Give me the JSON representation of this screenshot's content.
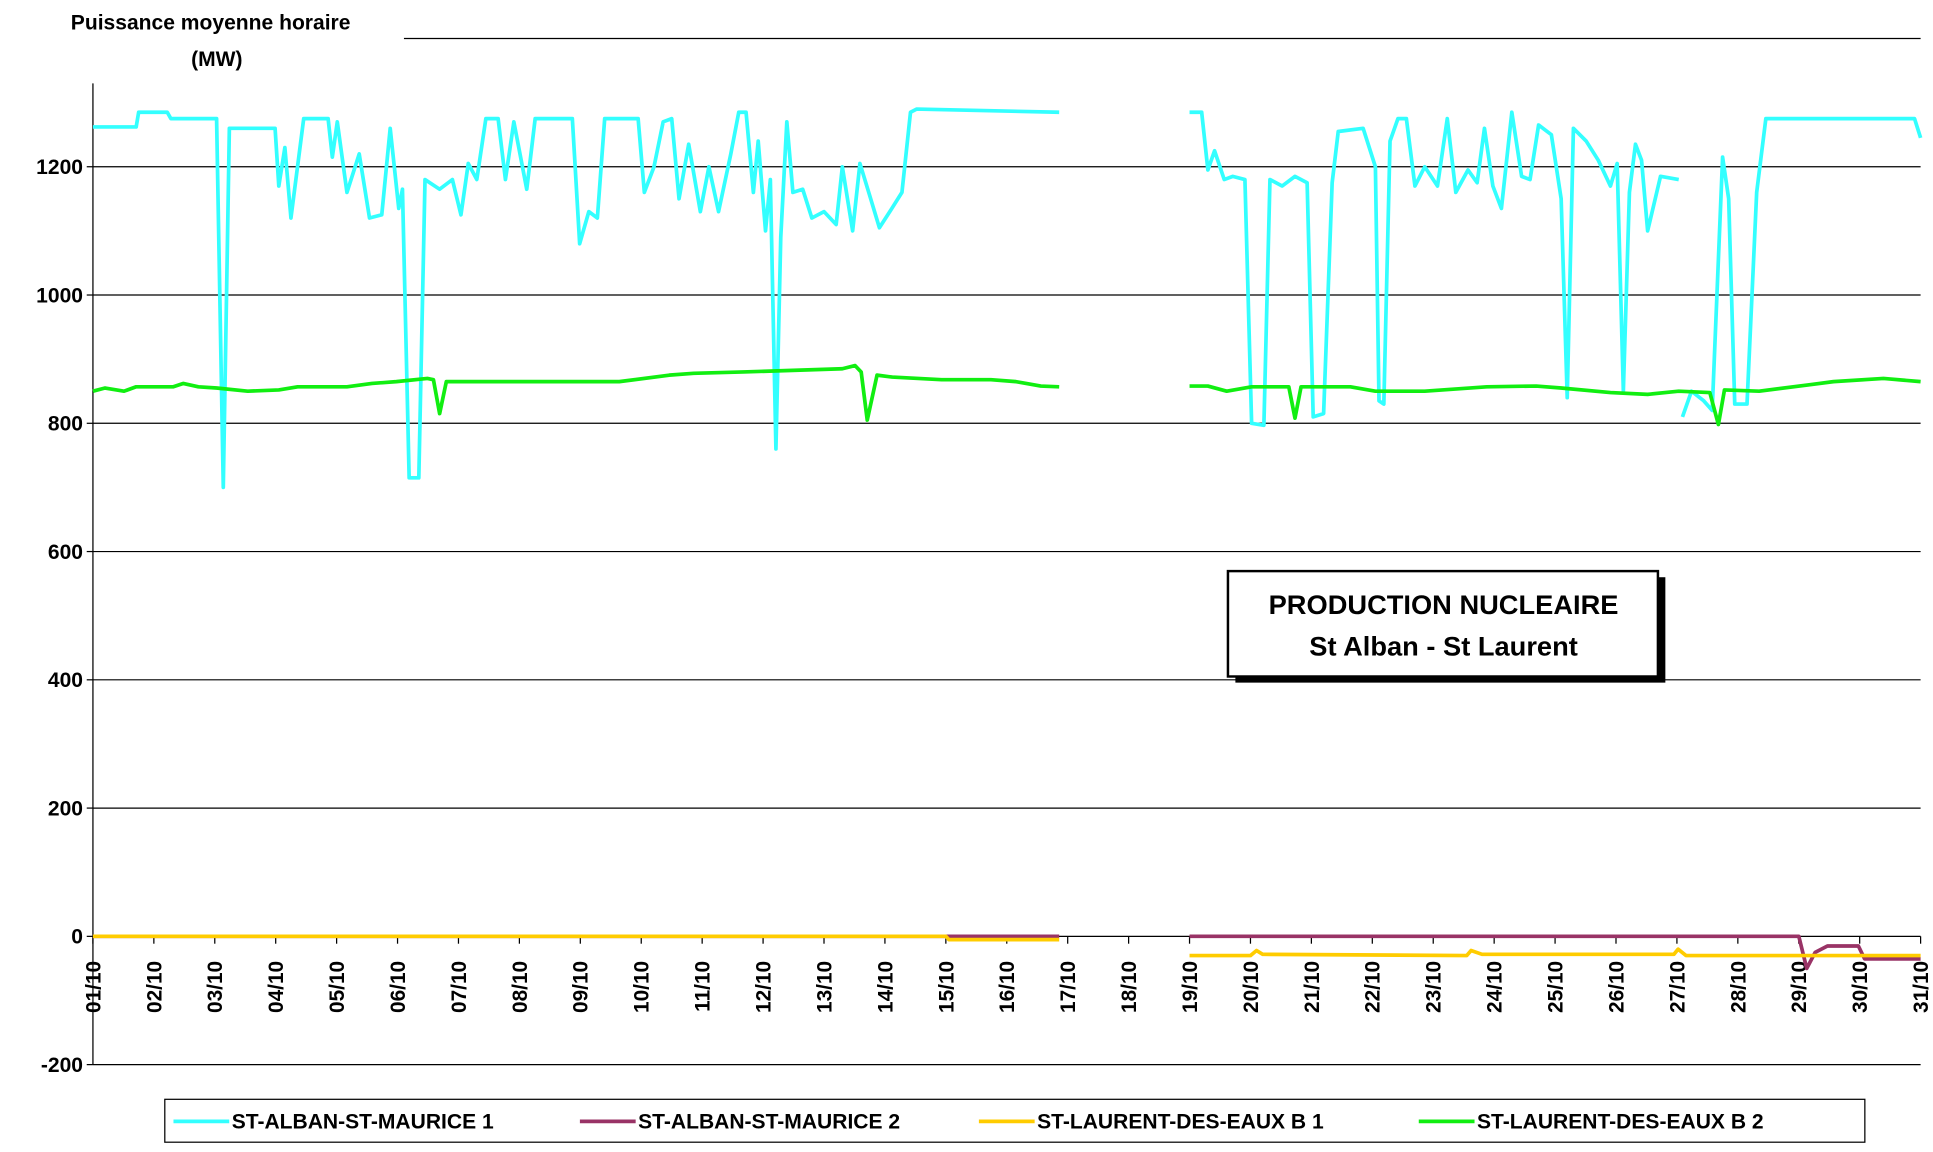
{
  "chart_data": {
    "type": "line",
    "y_label": [
      "Puissance moyenne horaire",
      "(MW)"
    ],
    "annotation": [
      "PRODUCTION NUCLEAIRE",
      "St Alban - St Laurent"
    ],
    "xlim": [
      1,
      31
    ],
    "xticks": [
      {
        "value": 1,
        "label": "01/10"
      },
      {
        "value": 2,
        "label": "02/10"
      },
      {
        "value": 3,
        "label": "03/10"
      },
      {
        "value": 4,
        "label": "04/10"
      },
      {
        "value": 5,
        "label": "05/10"
      },
      {
        "value": 6,
        "label": "06/10"
      },
      {
        "value": 7,
        "label": "07/10"
      },
      {
        "value": 8,
        "label": "08/10"
      },
      {
        "value": 9,
        "label": "09/10"
      },
      {
        "value": 10,
        "label": "10/10"
      },
      {
        "value": 11,
        "label": "11/10"
      },
      {
        "value": 12,
        "label": "12/10"
      },
      {
        "value": 13,
        "label": "13/10"
      },
      {
        "value": 14,
        "label": "14/10"
      },
      {
        "value": 15,
        "label": "15/10"
      },
      {
        "value": 16,
        "label": "16/10"
      },
      {
        "value": 17,
        "label": "17/10"
      },
      {
        "value": 18,
        "label": "18/10"
      },
      {
        "value": 19,
        "label": "19/10"
      },
      {
        "value": 20,
        "label": "20/10"
      },
      {
        "value": 21,
        "label": "21/10"
      },
      {
        "value": 22,
        "label": "22/10"
      },
      {
        "value": 23,
        "label": "23/10"
      },
      {
        "value": 24,
        "label": "24/10"
      },
      {
        "value": 25,
        "label": "25/10"
      },
      {
        "value": 26,
        "label": "26/10"
      },
      {
        "value": 27,
        "label": "27/10"
      },
      {
        "value": 28,
        "label": "28/10"
      },
      {
        "value": 29,
        "label": "29/10"
      },
      {
        "value": 30,
        "label": "30/10"
      },
      {
        "value": 31,
        "label": "31/10"
      }
    ],
    "ylim": [
      -200,
      1400
    ],
    "yticks": [
      -200,
      0,
      200,
      400,
      600,
      800,
      1000,
      1200,
      1400
    ],
    "grid": true,
    "legend": "bottom",
    "series": [
      {
        "name": "ST-ALBAN-ST-MAURICE 1",
        "color": "#33ffff",
        "x": [
          1,
          1.71,
          1.75,
          2.22,
          2.28,
          3.03,
          3.14,
          3.24,
          3.99,
          4.05,
          4.15,
          4.25,
          4.46,
          4.86,
          4.93,
          5.01,
          5.17,
          5.37,
          5.54,
          5.74,
          5.88,
          6.02,
          6.08,
          6.19,
          6.35,
          6.45,
          6.69,
          6.9,
          7.04,
          7.16,
          7.3,
          7.45,
          7.65,
          7.77,
          7.91,
          8.12,
          8.26,
          8.87,
          8.99,
          9.14,
          9.28,
          9.4,
          9.95,
          10.05,
          10.21,
          10.36,
          10.5,
          10.62,
          10.78,
          10.97,
          11.11,
          11.27,
          11.47,
          11.6,
          11.72,
          11.84,
          11.92,
          12.04,
          12.12,
          12.21,
          12.29,
          12.39,
          12.49,
          12.65,
          12.8,
          13,
          13.2,
          13.3,
          13.47,
          13.59,
          13.75,
          13.91,
          14.08,
          14.28,
          14.42,
          14.52,
          16.86,
          18,
          19,
          19.2,
          19.3,
          19.41,
          19.57,
          19.71,
          19.91,
          20.02,
          20.22,
          20.32,
          20.52,
          20.73,
          20.93,
          21.03,
          21.2,
          21.34,
          21.44,
          21.85,
          22.05,
          22.11,
          22.19,
          22.29,
          22.42,
          22.56,
          22.7,
          22.86,
          23.07,
          23.23,
          23.37,
          23.57,
          23.72,
          23.84,
          23.98,
          24.12,
          24.29,
          24.45,
          24.59,
          24.73,
          24.94,
          25.1,
          25.2,
          25.3,
          25.51,
          25.71,
          25.91,
          26.02,
          26.12,
          26.22,
          26.32,
          26.42,
          26.52,
          26.73,
          27.03,
          27.06,
          27.09,
          27.24,
          27.44,
          27.58,
          27.75,
          27.85,
          27.95,
          28.15,
          28.31,
          28.46,
          30.9,
          31
        ],
        "values": [
          1262,
          1262,
          1285,
          1285,
          1275,
          1275,
          700,
          1260,
          1260,
          1170,
          1230,
          1120,
          1275,
          1275,
          1215,
          1270,
          1160,
          1220,
          1120,
          1125,
          1260,
          1135,
          1165,
          715,
          715,
          1180,
          1165,
          1180,
          1125,
          1205,
          1180,
          1275,
          1275,
          1180,
          1270,
          1165,
          1275,
          1275,
          1080,
          1130,
          1120,
          1275,
          1275,
          1160,
          1200,
          1270,
          1275,
          1150,
          1235,
          1130,
          1200,
          1130,
          1220,
          1285,
          1285,
          1160,
          1240,
          1100,
          1180,
          760,
          1090,
          1270,
          1160,
          1165,
          1120,
          1130,
          1110,
          1200,
          1100,
          1205,
          1155,
          1105,
          1130,
          1160,
          1285,
          1290,
          1285,
          null,
          1285,
          1285,
          1195,
          1225,
          1180,
          1185,
          1180,
          800,
          797,
          1180,
          1170,
          1185,
          1175,
          810,
          815,
          1175,
          1255,
          1260,
          1200,
          835,
          830,
          1240,
          1275,
          1275,
          1170,
          1200,
          1170,
          1275,
          1160,
          1195,
          1175,
          1260,
          1170,
          1135,
          1285,
          1185,
          1180,
          1265,
          1250,
          1150,
          840,
          1260,
          1240,
          1210,
          1170,
          1205,
          850,
          1160,
          1235,
          1210,
          1100,
          1185,
          1180,
          null,
          810,
          850,
          835,
          820,
          1215,
          1150,
          830,
          830,
          1160,
          1275,
          1275,
          1245
        ]
      },
      {
        "name": "ST-ALBAN-ST-MAURICE 2",
        "color": "#993366",
        "x": [
          1,
          16.86,
          18,
          19,
          29,
          29.13,
          29.27,
          29.47,
          29.98,
          30.08,
          31
        ],
        "values": [
          0,
          0,
          null,
          0,
          0,
          -50,
          -25,
          -15,
          -15,
          -35,
          -35
        ]
      },
      {
        "name": "ST-LAURENT-DES-EAUX B 1",
        "color": "#ffcc00",
        "x": [
          1,
          15,
          15.05,
          16.86,
          18,
          19,
          20,
          20.1,
          20.2,
          23.55,
          23.62,
          23.8,
          26.95,
          27.02,
          27.15,
          31
        ],
        "values": [
          0,
          0,
          -5,
          -5,
          null,
          -30,
          -30,
          -22,
          -28,
          -30,
          -22,
          -28,
          -28,
          -20,
          -30,
          -30
        ]
      },
      {
        "name": "ST-LAURENT-DES-EAUX B 2",
        "color": "#11ee11",
        "x": [
          1,
          1.2,
          1.51,
          1.71,
          2.32,
          2.48,
          2.73,
          3.03,
          3.54,
          4.05,
          4.36,
          5.17,
          5.58,
          5.98,
          6.49,
          6.59,
          6.69,
          6.8,
          7.61,
          9.64,
          10.46,
          10.86,
          11.68,
          13.3,
          13.51,
          13.61,
          13.71,
          13.87,
          14.12,
          14.93,
          15.74,
          16.15,
          16.56,
          16.86,
          18,
          19,
          19.3,
          19.61,
          20.02,
          20.63,
          20.73,
          20.83,
          21.64,
          22.05,
          22.86,
          23.88,
          24.69,
          25.1,
          25.91,
          26.52,
          27.03,
          27.54,
          27.68,
          27.78,
          28.35,
          29.17,
          29.57,
          30.39,
          31
        ],
        "values": [
          850,
          855,
          850,
          857,
          857,
          862,
          857,
          855,
          850,
          852,
          857,
          857,
          862,
          865,
          870,
          868,
          815,
          865,
          865,
          865,
          875,
          878,
          880,
          885,
          890,
          880,
          805,
          875,
          872,
          868,
          868,
          865,
          858,
          857,
          null,
          858,
          858,
          850,
          857,
          857,
          808,
          857,
          857,
          850,
          850,
          857,
          858,
          855,
          848,
          845,
          850,
          848,
          798,
          852,
          850,
          860,
          865,
          870,
          865
        ]
      }
    ]
  }
}
